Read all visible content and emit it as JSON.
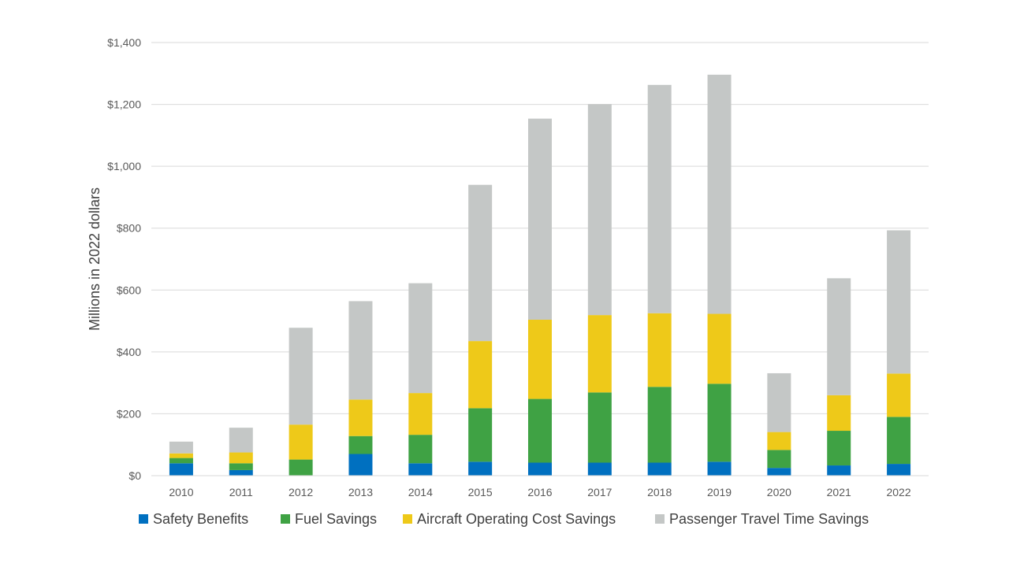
{
  "chart_data": {
    "type": "bar",
    "stacked": true,
    "title": "",
    "xlabel": "",
    "ylabel": "Millions in 2022 dollars",
    "ylim": [
      0,
      1400
    ],
    "yticks": [
      0,
      200,
      400,
      600,
      800,
      1000,
      1200,
      1400
    ],
    "ytick_labels": [
      "$0",
      "$200",
      "$400",
      "$600",
      "$800",
      "$1,000",
      "$1,200",
      "$1,400"
    ],
    "grid": true,
    "legend_position": "bottom",
    "categories": [
      "2010",
      "2011",
      "2012",
      "2013",
      "2014",
      "2015",
      "2016",
      "2017",
      "2018",
      "2019",
      "2020",
      "2021",
      "2022"
    ],
    "series": [
      {
        "name": "Safety Benefits",
        "color": "#0070C0",
        "values": [
          40,
          18,
          0,
          70,
          40,
          45,
          42,
          42,
          42,
          45,
          25,
          33,
          38
        ]
      },
      {
        "name": "Fuel Savings",
        "color": "#3FA244",
        "values": [
          17,
          22,
          52,
          58,
          92,
          173,
          206,
          227,
          245,
          252,
          58,
          112,
          152
        ]
      },
      {
        "name": "Aircraft Operating Cost Savings",
        "color": "#EEC919",
        "values": [
          15,
          35,
          113,
          118,
          135,
          217,
          256,
          250,
          238,
          226,
          58,
          115,
          140
        ]
      },
      {
        "name": "Passenger Travel Time Savings",
        "color": "#C4C7C6",
        "values": [
          38,
          80,
          313,
          318,
          355,
          505,
          650,
          682,
          738,
          773,
          190,
          378,
          463
        ]
      }
    ]
  }
}
